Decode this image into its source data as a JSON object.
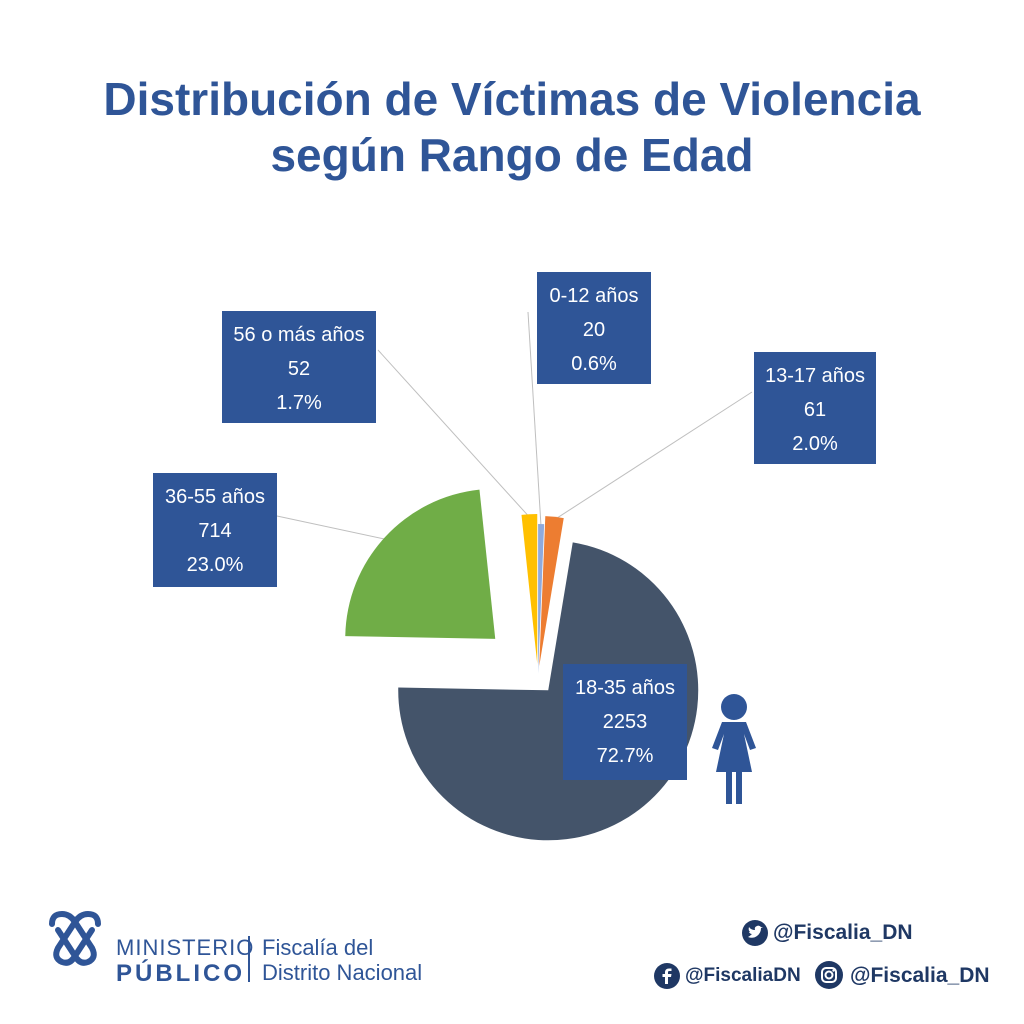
{
  "title": {
    "line1": "Distribución de Víctimas de Violencia",
    "line2": "según Rango de Edad"
  },
  "chart_data": {
    "type": "pie",
    "title": "Distribución de Víctimas de Violencia según Rango de Edad",
    "slices": [
      {
        "label": "0-12 años",
        "value": 20,
        "percent": "0.6%",
        "color": "#8faadc"
      },
      {
        "label": "13-17 años",
        "value": 61,
        "percent": "2.0%",
        "color": "#ed7d31"
      },
      {
        "label": "18-35 años",
        "value": 2253,
        "percent": "72.7%",
        "color": "#44546a"
      },
      {
        "label": "36-55 años",
        "value": 714,
        "percent": "23.0%",
        "color": "#70ad47"
      },
      {
        "label": "56 o más años",
        "value": 52,
        "percent": "1.7%",
        "color": "#ffc000"
      }
    ],
    "label_box_color": "#2f5597"
  },
  "footer": {
    "logo": {
      "line1": "MINISTERIO",
      "line2": "PÚBLICO",
      "sub1": "Fiscalía del",
      "sub2": "Distrito Nacional"
    },
    "twitter": "@Fiscalia_DN",
    "facebook": "@FiscaliaDN",
    "instagram": "@Fiscalia_DN"
  },
  "icons": {
    "woman": "woman-icon",
    "twitter": "twitter-icon",
    "facebook": "facebook-icon",
    "instagram": "instagram-icon"
  }
}
